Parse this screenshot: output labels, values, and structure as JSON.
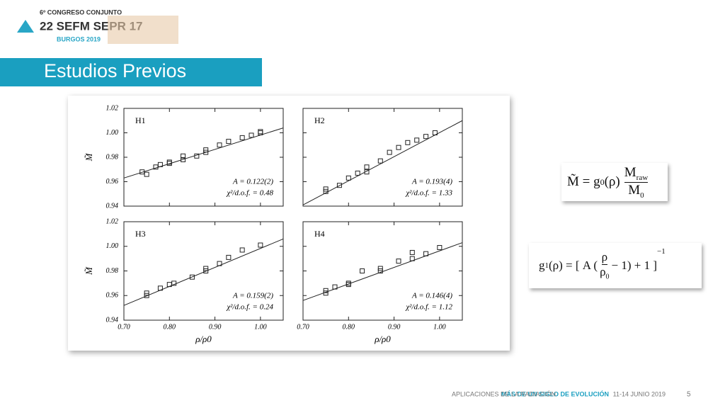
{
  "header": {
    "logo_line1": "6º CONGRESO CONJUNTO",
    "logo_line2": "22 SEFM SEPR 17",
    "logo_line3": "BURGOS 2019"
  },
  "title": "Estudios Previos",
  "chart_data": [
    {
      "type": "scatter",
      "label": "H1",
      "annotations": [
        "A = 0.122(2)",
        "χ²/d.o.f. = 0.48"
      ],
      "ylabel": "M̃",
      "x": [
        0.74,
        0.75,
        0.77,
        0.78,
        0.8,
        0.8,
        0.83,
        0.83,
        0.86,
        0.88,
        0.88,
        0.91,
        0.93,
        0.96,
        0.98,
        1.0,
        1.0
      ],
      "values": [
        0.968,
        0.966,
        0.972,
        0.974,
        0.976,
        0.975,
        0.978,
        0.981,
        0.981,
        0.986,
        0.984,
        0.99,
        0.993,
        0.996,
        0.998,
        1.0,
        1.001
      ],
      "fit": {
        "x": [
          0.7,
          1.05
        ],
        "y": [
          0.963,
          1.004
        ]
      },
      "xlim": [
        0.7,
        1.05
      ],
      "ylim": [
        0.94,
        1.02
      ],
      "xticks": [
        0.7,
        0.8,
        0.9,
        1.0
      ],
      "yticks": [
        {
          "value": 0.94,
          "label": "0.94"
        },
        {
          "value": 0.96,
          "label": "0.96"
        },
        {
          "value": 0.98,
          "label": "0.98"
        },
        {
          "value": 1.0,
          "label": "1.00"
        },
        {
          "value": 1.02,
          "label": "1.02"
        }
      ]
    },
    {
      "type": "scatter",
      "label": "H2",
      "annotations": [
        "A = 0.193(4)",
        "χ²/d.o.f. = 1.33"
      ],
      "x": [
        0.75,
        0.75,
        0.78,
        0.8,
        0.82,
        0.84,
        0.84,
        0.87,
        0.89,
        0.91,
        0.93,
        0.95,
        0.97,
        0.99
      ],
      "values": [
        0.952,
        0.954,
        0.957,
        0.963,
        0.967,
        0.972,
        0.968,
        0.977,
        0.984,
        0.988,
        0.992,
        0.994,
        0.997,
        1.0
      ],
      "fit": {
        "x": [
          0.7,
          1.05
        ],
        "y": [
          0.941,
          1.01
        ]
      },
      "xlim": [
        0.7,
        1.05
      ],
      "ylim": [
        0.94,
        1.02
      ],
      "xticks": [
        0.7,
        0.8,
        0.9,
        1.0
      ],
      "yticks": [
        0.94,
        0.96,
        0.98,
        1.0,
        1.02
      ]
    },
    {
      "type": "scatter",
      "label": "H3",
      "annotations": [
        "A = 0.159(2)",
        "χ²/d.o.f. = 0.24"
      ],
      "ylabel": "M̃",
      "xlabel": "ρ/ρ0",
      "x": [
        0.75,
        0.75,
        0.78,
        0.8,
        0.81,
        0.85,
        0.88,
        0.88,
        0.91,
        0.93,
        0.96,
        1.0
      ],
      "values": [
        0.96,
        0.962,
        0.966,
        0.969,
        0.97,
        0.975,
        0.98,
        0.982,
        0.986,
        0.991,
        0.997,
        1.001
      ],
      "fit": {
        "x": [
          0.7,
          1.05
        ],
        "y": [
          0.952,
          1.006
        ]
      },
      "xlim": [
        0.7,
        1.05
      ],
      "ylim": [
        0.94,
        1.02
      ],
      "xticks": [
        {
          "value": 0.7,
          "label": "0.70"
        },
        {
          "value": 0.8,
          "label": "0.80"
        },
        {
          "value": 0.9,
          "label": "0.90"
        },
        {
          "value": 1.0,
          "label": "1.00"
        }
      ],
      "yticks": [
        {
          "value": 0.94,
          "label": "0.94"
        },
        {
          "value": 0.96,
          "label": "0.96"
        },
        {
          "value": 0.98,
          "label": "0.98"
        },
        {
          "value": 1.0,
          "label": "1.00"
        },
        {
          "value": 1.02,
          "label": "1.02"
        }
      ]
    },
    {
      "type": "scatter",
      "label": "H4",
      "annotations": [
        "A = 0.146(4)",
        "χ²/d.o.f. = 1.12"
      ],
      "xlabel": "ρ/ρ0",
      "x": [
        0.75,
        0.75,
        0.77,
        0.8,
        0.8,
        0.83,
        0.87,
        0.87,
        0.91,
        0.94,
        0.94,
        0.97,
        1.0
      ],
      "values": [
        0.962,
        0.964,
        0.967,
        0.97,
        0.969,
        0.98,
        0.982,
        0.98,
        0.988,
        0.99,
        0.995,
        0.994,
        0.999
      ],
      "fit": {
        "x": [
          0.7,
          1.05
        ],
        "y": [
          0.956,
          1.003
        ]
      },
      "xlim": [
        0.7,
        1.05
      ],
      "ylim": [
        0.94,
        1.02
      ],
      "xticks": [
        {
          "value": 0.7,
          "label": "0.70"
        },
        {
          "value": 0.8,
          "label": "0.80"
        },
        {
          "value": 0.9,
          "label": "0.90"
        },
        {
          "value": 1.0,
          "label": "1.00"
        }
      ],
      "yticks": [
        0.94,
        0.96,
        0.98,
        1.0,
        1.02
      ]
    }
  ],
  "formulas": [
    {
      "lhs": "M̃ = g",
      "sub": "0",
      "mid": "(ρ)",
      "num": "M",
      "num_sub": "raw",
      "den": "M",
      "den_sub": "0"
    },
    {
      "lhs": "g",
      "sub": "1",
      "mid": "(ρ) = [ A (",
      "num": "ρ",
      "den": "ρ",
      "den_sub": "0",
      "tail": "− 1) + 1 ]",
      "sup": "−1"
    }
  ],
  "footer": {
    "text": "APLICACIONES DE LA RADIACIÓN",
    "bold": "MÁS DE UN SIGLO DE EVOLUCIÓN",
    "dates": "11-14 JUNIO 2019",
    "page": "5"
  }
}
